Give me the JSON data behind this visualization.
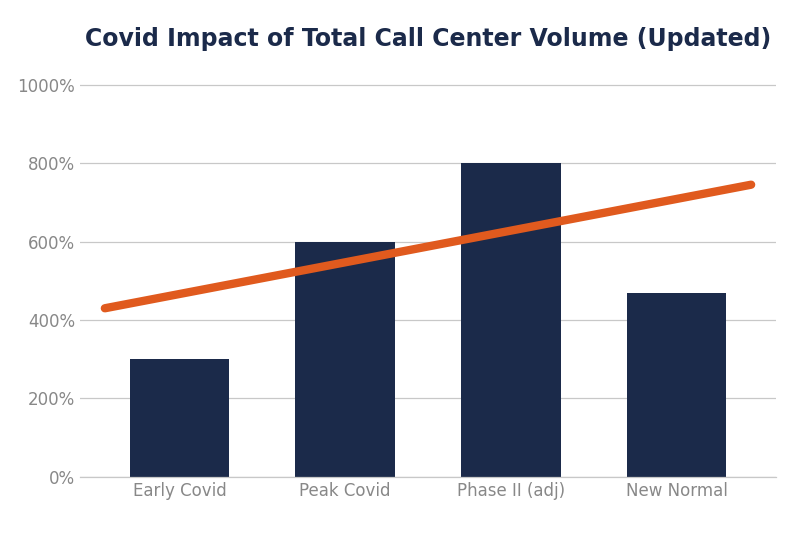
{
  "title": "Covid Impact of Total Call Center Volume (Updated)",
  "categories": [
    "Early Covid",
    "Peak Covid",
    "Phase II (adj)",
    "New Normal"
  ],
  "values": [
    300,
    600,
    800,
    470
  ],
  "bar_color": "#1b2a4a",
  "line_x": [
    -0.45,
    3.45
  ],
  "line_y": [
    430,
    745
  ],
  "line_color": "#e05a1e",
  "line_width": 6,
  "ylim": [
    0,
    1050
  ],
  "yticks": [
    0,
    200,
    400,
    600,
    800,
    1000
  ],
  "ytick_labels": [
    "0%",
    "200%",
    "400%",
    "600%",
    "800%",
    "1000%"
  ],
  "background_color": "#ffffff",
  "title_color": "#1b2a4a",
  "title_fontsize": 17,
  "tick_fontsize": 12,
  "tick_color": "#888888",
  "grid_color": "#c8c8c8",
  "bar_width": 0.6,
  "xlim": [
    -0.6,
    3.6
  ]
}
